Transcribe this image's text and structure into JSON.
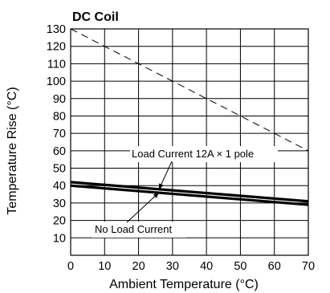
{
  "chart_data": {
    "type": "line",
    "title": "DC Coil",
    "xlabel": "Ambient Temperature (°C)",
    "ylabel": "Temperature Rise (°C)",
    "xlim": [
      0,
      70
    ],
    "ylim": [
      0,
      130
    ],
    "x_ticks": [
      "0",
      "10",
      "20",
      "30",
      "40",
      "50",
      "60",
      "70"
    ],
    "y_ticks": [
      "10",
      "20",
      "30",
      "40",
      "50",
      "60",
      "70",
      "80",
      "90",
      "100",
      "110",
      "120",
      "130"
    ],
    "grid": true,
    "series": [
      {
        "name": "Load Current 12A × 1 pole",
        "x": [
          0,
          70
        ],
        "y": [
          42,
          31
        ],
        "style": "thick",
        "color": "#000000"
      },
      {
        "name": "No Load Current",
        "x": [
          0,
          70
        ],
        "y": [
          40,
          29
        ],
        "style": "thick",
        "color": "#000000"
      },
      {
        "name": "",
        "x": [
          0,
          70
        ],
        "y": [
          130,
          60
        ],
        "style": "dashed",
        "color": "#000000"
      }
    ],
    "annotations": [
      {
        "text": "Load Current 12A × 1 pole",
        "target_series": 0,
        "arrow_to": [
          26,
          37.8
        ]
      },
      {
        "text": "No Load Current",
        "target_series": 1,
        "arrow_to": [
          26,
          36
        ]
      }
    ]
  }
}
